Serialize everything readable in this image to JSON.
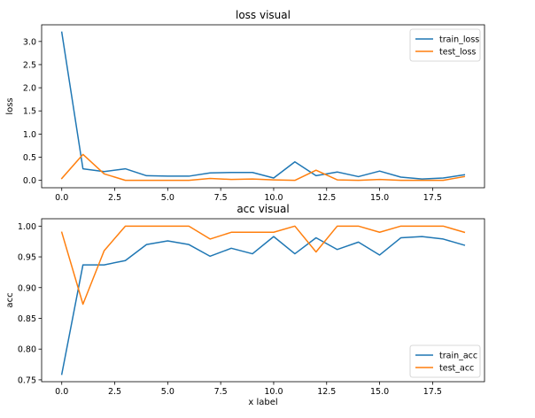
{
  "chart_data": [
    {
      "type": "line",
      "title": "loss visual",
      "xlabel": "",
      "ylabel": "loss",
      "xlim": [
        -0.95,
        19.95
      ],
      "ylim": [
        -0.16,
        3.36
      ],
      "xticks": [
        0.0,
        2.5,
        5.0,
        7.5,
        10.0,
        12.5,
        15.0,
        17.5
      ],
      "xtick_labels": [
        "0.0",
        "2.5",
        "5.0",
        "7.5",
        "10.0",
        "12.5",
        "15.0",
        "17.5"
      ],
      "yticks": [
        0.0,
        0.5,
        1.0,
        1.5,
        2.0,
        2.5,
        3.0
      ],
      "ytick_labels": [
        "0.0",
        "0.5",
        "1.0",
        "1.5",
        "2.0",
        "2.5",
        "3.0"
      ],
      "legend_position": "top-right",
      "x": [
        0,
        1,
        2,
        3,
        4,
        5,
        6,
        7,
        8,
        9,
        10,
        11,
        12,
        13,
        14,
        15,
        16,
        17,
        18,
        19
      ],
      "series": [
        {
          "name": "train_loss",
          "color": "#1f77b4",
          "values": [
            3.2,
            0.25,
            0.19,
            0.25,
            0.1,
            0.09,
            0.09,
            0.16,
            0.17,
            0.17,
            0.05,
            0.4,
            0.1,
            0.18,
            0.08,
            0.2,
            0.07,
            0.03,
            0.05,
            0.12
          ]
        },
        {
          "name": "test_loss",
          "color": "#ff7f0e",
          "values": [
            0.04,
            0.56,
            0.14,
            0.0,
            0.0,
            0.0,
            0.0,
            0.04,
            0.02,
            0.03,
            0.01,
            0.0,
            0.22,
            0.01,
            0.0,
            0.02,
            0.0,
            0.0,
            0.0,
            0.08
          ]
        }
      ]
    },
    {
      "type": "line",
      "title": "acc visual",
      "xlabel": "x label",
      "ylabel": "acc",
      "xlim": [
        -0.95,
        19.95
      ],
      "ylim": [
        0.747,
        1.012
      ],
      "xticks": [
        0.0,
        2.5,
        5.0,
        7.5,
        10.0,
        12.5,
        15.0,
        17.5
      ],
      "xtick_labels": [
        "0.0",
        "2.5",
        "5.0",
        "7.5",
        "10.0",
        "12.5",
        "15.0",
        "17.5"
      ],
      "yticks": [
        0.75,
        0.8,
        0.85,
        0.9,
        0.95,
        1.0
      ],
      "ytick_labels": [
        "0.75",
        "0.80",
        "0.85",
        "0.90",
        "0.95",
        "1.00"
      ],
      "legend_position": "bottom-right",
      "x": [
        0,
        1,
        2,
        3,
        4,
        5,
        6,
        7,
        8,
        9,
        10,
        11,
        12,
        13,
        14,
        15,
        16,
        17,
        18,
        19
      ],
      "series": [
        {
          "name": "train_acc",
          "color": "#1f77b4",
          "values": [
            0.759,
            0.937,
            0.937,
            0.944,
            0.97,
            0.976,
            0.97,
            0.951,
            0.964,
            0.955,
            0.983,
            0.955,
            0.981,
            0.962,
            0.974,
            0.953,
            0.981,
            0.983,
            0.979,
            0.969
          ]
        },
        {
          "name": "test_acc",
          "color": "#ff7f0e",
          "values": [
            0.99,
            0.873,
            0.96,
            1.0,
            1.0,
            1.0,
            1.0,
            0.979,
            0.99,
            0.99,
            0.99,
            1.0,
            0.958,
            1.0,
            1.0,
            0.99,
            1.0,
            1.0,
            1.0,
            0.99
          ]
        }
      ]
    }
  ]
}
